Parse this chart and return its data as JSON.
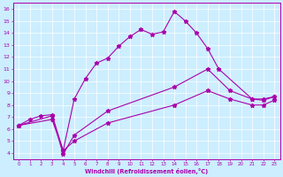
{
  "xlabel": "Windchill (Refroidissement éolien,°C)",
  "bg_color": "#cceeff",
  "line_color": "#aa00aa",
  "xlim": [
    -0.5,
    23.5
  ],
  "ylim": [
    3.5,
    16.5
  ],
  "xticks": [
    0,
    1,
    2,
    3,
    4,
    5,
    6,
    7,
    8,
    9,
    10,
    11,
    12,
    13,
    14,
    15,
    16,
    17,
    18,
    19,
    20,
    21,
    22,
    23
  ],
  "yticks": [
    4,
    5,
    6,
    7,
    8,
    9,
    10,
    11,
    12,
    13,
    14,
    15,
    16
  ],
  "line1_x": [
    0,
    1,
    2,
    3,
    4,
    5,
    6,
    7,
    8,
    9,
    10,
    11,
    12,
    13,
    14,
    15,
    16,
    17,
    18,
    21,
    22,
    23
  ],
  "line1_y": [
    6.3,
    6.8,
    7.1,
    7.2,
    4.2,
    8.5,
    10.2,
    11.5,
    11.9,
    12.9,
    13.7,
    14.3,
    13.9,
    14.1,
    15.8,
    15.0,
    14.0,
    12.7,
    11.0,
    8.5,
    8.5,
    8.7
  ],
  "line2_x": [
    0,
    3,
    4,
    5,
    8,
    14,
    17,
    19,
    21,
    22,
    23
  ],
  "line2_y": [
    6.3,
    7.1,
    3.9,
    5.5,
    7.5,
    9.5,
    11.0,
    9.2,
    8.5,
    8.4,
    8.7
  ],
  "line3_x": [
    0,
    3,
    4,
    5,
    8,
    14,
    17,
    19,
    21,
    22,
    23
  ],
  "line3_y": [
    6.3,
    6.8,
    4.2,
    5.0,
    6.5,
    8.0,
    9.2,
    8.5,
    8.0,
    8.0,
    8.4
  ]
}
